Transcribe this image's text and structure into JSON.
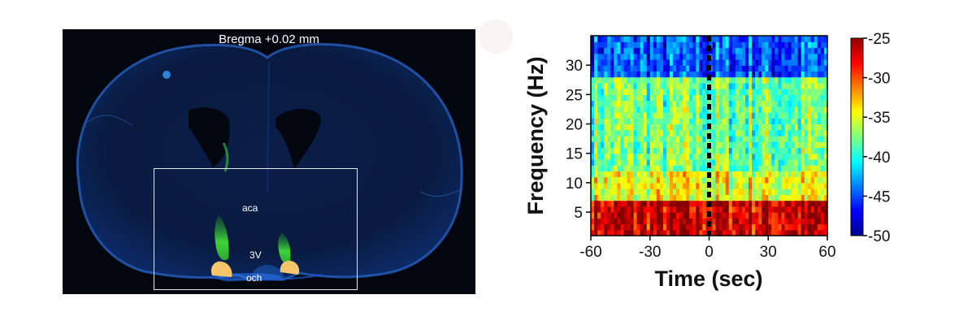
{
  "histology": {
    "title": "Bregma +0.02 mm",
    "labels": {
      "aca": "aca",
      "third_ventricle": "3V",
      "och": "och"
    },
    "marker_color": "#f7c56b",
    "stain_color": "#1e5cc0",
    "expression_color": "#3fd23a"
  },
  "chart_data": {
    "type": "heatmap",
    "title": "",
    "xlabel": "Time (sec)",
    "ylabel": "Frequency (Hz)",
    "xlim": [
      -60,
      60
    ],
    "ylim": [
      1,
      35
    ],
    "xticks": [
      -60,
      -30,
      0,
      30,
      60
    ],
    "yticks": [
      5,
      10,
      15,
      20,
      25,
      30
    ],
    "colorbar": {
      "range": [
        -50,
        -25
      ],
      "ticks": [
        -25,
        -30,
        -35,
        -40,
        -45,
        -50
      ],
      "colormap": "jet"
    },
    "event_line": {
      "x": 0,
      "style": "dashed",
      "color": "#000000"
    },
    "frequency_bands_db": [
      {
        "range_hz": [
          1,
          7
        ],
        "mean_power_db": -27
      },
      {
        "range_hz": [
          7,
          12
        ],
        "mean_power_db": -35
      },
      {
        "range_hz": [
          12,
          28
        ],
        "mean_power_db": -38
      },
      {
        "range_hz": [
          28,
          35
        ],
        "mean_power_db": -45
      }
    ],
    "grid": false
  }
}
